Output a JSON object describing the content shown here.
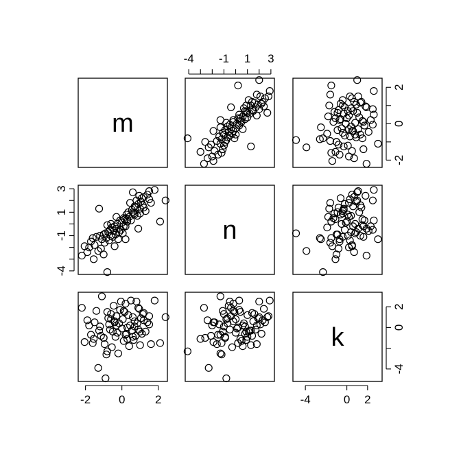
{
  "chart_data": {
    "type": "scatter",
    "subtype": "pairs-matrix",
    "variables": [
      "m",
      "n",
      "k"
    ],
    "ranges": {
      "m": [
        -2.4,
        2.5
      ],
      "n": [
        -4.3,
        3.3
      ],
      "k": [
        -5.2,
        3.4
      ]
    },
    "axis_ticks": {
      "bottom": {
        "m": {
          "values": [
            -2,
            0,
            2
          ],
          "labels": [
            "-2",
            "0",
            "2"
          ]
        },
        "k": {
          "values": [
            -4,
            0,
            2
          ],
          "labels": [
            "-4",
            "0",
            "2"
          ]
        }
      },
      "top": {
        "n": {
          "values": [
            -4,
            -3,
            -2,
            -1,
            0,
            1,
            2,
            3
          ],
          "labels": [
            "-4",
            "",
            "",
            "-1",
            "",
            "1",
            "",
            "3"
          ]
        }
      },
      "left": {
        "n": {
          "values": [
            -4,
            -3,
            -2,
            -1,
            0,
            1,
            2,
            3
          ],
          "labels": [
            "-4",
            "",
            "",
            "-1",
            "",
            "1",
            "",
            "3"
          ]
        }
      },
      "right": {
        "m": {
          "values": [
            -2,
            -1,
            0,
            1,
            2
          ],
          "labels": [
            "-2",
            "",
            "0",
            "",
            "2"
          ]
        },
        "k": {
          "values": [
            -4,
            -2,
            0,
            2
          ],
          "labels": [
            "-4",
            "",
            "0",
            "2"
          ]
        }
      }
    },
    "points": {
      "m": [
        -2.2,
        -2.05,
        -1.9,
        -1.8,
        -1.7,
        -1.6,
        -1.55,
        -1.5,
        -1.4,
        -1.3,
        -1.2,
        -1.15,
        -1.1,
        -1.0,
        -0.95,
        -0.9,
        -0.85,
        -0.8,
        -0.75,
        -0.7,
        -0.65,
        -0.6,
        -0.55,
        -0.5,
        -0.45,
        -0.4,
        -0.35,
        -0.3,
        -0.25,
        -0.2,
        -0.15,
        -0.1,
        -0.05,
        0.0,
        0.05,
        0.1,
        0.15,
        0.2,
        0.25,
        0.3,
        0.35,
        0.4,
        0.45,
        0.5,
        0.55,
        0.6,
        0.65,
        0.7,
        0.75,
        0.8,
        0.85,
        0.9,
        0.95,
        1.0,
        1.05,
        1.1,
        1.15,
        1.2,
        1.3,
        1.4,
        1.5,
        1.6,
        1.8,
        2.1,
        2.4,
        -1.25,
        -0.8,
        -0.3,
        0.1,
        0.6,
        1.0,
        1.5,
        -0.6,
        0.3,
        0.9,
        -0.4,
        0.2,
        1.2,
        -1.0,
        0.7
      ],
      "n": [
        -2.7,
        -1.9,
        -2.4,
        -2.0,
        -1.5,
        -1.2,
        -3.0,
        -1.8,
        -1.1,
        -2.3,
        -1.0,
        -2.1,
        -1.3,
        -0.9,
        -1.6,
        -0.8,
        -1.2,
        -4.1,
        -0.7,
        -1.4,
        -0.5,
        -1.0,
        -0.3,
        -1.1,
        -0.6,
        -0.2,
        -0.9,
        -0.4,
        0.0,
        -1.3,
        -0.7,
        0.3,
        -0.5,
        0.1,
        -0.8,
        0.5,
        0.4,
        -0.2,
        0.8,
        0.2,
        1.0,
        0.6,
        1.8,
        0.3,
        1.2,
        2.7,
        0.9,
        1.5,
        1.4,
        2.0,
        0.7,
        1.7,
        2.4,
        1.3,
        1.9,
        2.2,
        1.6,
        2.3,
        1.1,
        2.5,
        2.8,
        1.8,
        2.9,
        0.2,
        2.0,
        1.3,
        -0.1,
        0.6,
        -0.2,
        1.0,
        0.9,
        2.1,
        0.0,
        0.4,
        -0.4,
        -1.9,
        -1.3,
        1.4,
        -2.6,
        0.8
      ],
      "k": [
        1.9,
        -1.4,
        0.7,
        0.2,
        -0.7,
        -1.5,
        -1.1,
        0.5,
        1.6,
        -3.9,
        0.1,
        -0.8,
        3.0,
        -1.0,
        -1.6,
        -4.9,
        -2.6,
        -2.3,
        0.9,
        0.3,
        -0.2,
        1.3,
        -1.9,
        -0.4,
        2.1,
        0.6,
        -0.9,
        1.1,
        -0.5,
        -2.5,
        0.4,
        1.7,
        2.5,
        -0.1,
        0.8,
        -1.3,
        1.5,
        2.3,
        -0.6,
        0.0,
        1.2,
        -1.8,
        0.2,
        2.6,
        -0.3,
        1.0,
        -1.2,
        0.6,
        -0.8,
        2.5,
        0.4,
        -0.2,
        1.8,
        -1.7,
        0.9,
        -0.6,
        1.3,
        0.7,
        -0.4,
        0.5,
        1.1,
        -1.6,
        2.6,
        -1.5,
        1.0,
        -0.3,
        1.5,
        0.2,
        1.6,
        -0.9,
        -0.4,
        0.3,
        0.8,
        -1.1,
        1.9,
        0.5,
        -0.7,
        1.4,
        -1.0,
        0.1
      ]
    }
  }
}
